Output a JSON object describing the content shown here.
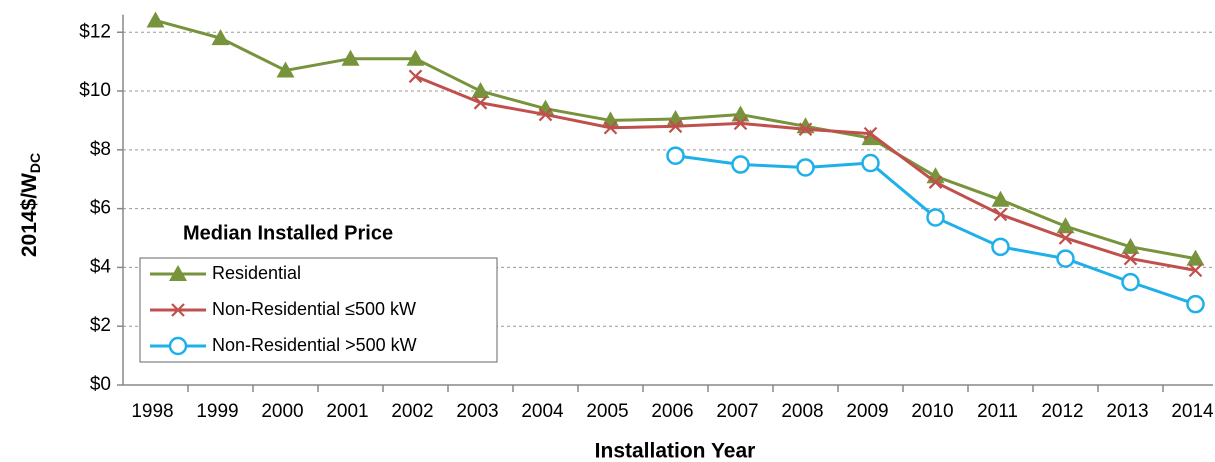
{
  "chart_data": {
    "type": "line",
    "x_label": "Installation Year",
    "y_label": "2014$/W",
    "y_label_sub": "DC",
    "legend_title": "Median Installed Price",
    "legend_position": "lower left",
    "grid": true,
    "categories": [
      "1998",
      "1999",
      "2000",
      "2001",
      "2002",
      "2003",
      "2004",
      "2005",
      "2006",
      "2007",
      "2008",
      "2009",
      "2010",
      "2011",
      "2012",
      "2013",
      "2014"
    ],
    "ylim": [
      0,
      12.6
    ],
    "yticks": [
      {
        "value": 0,
        "label": "$0"
      },
      {
        "value": 2,
        "label": "$2"
      },
      {
        "value": 4,
        "label": "$4"
      },
      {
        "value": 6,
        "label": "$6"
      },
      {
        "value": 8,
        "label": "$8"
      },
      {
        "value": 10,
        "label": "$10"
      },
      {
        "value": 12,
        "label": "$12"
      }
    ],
    "series": [
      {
        "name": "Residential",
        "color": "#77933c",
        "marker": "triangle",
        "values": [
          12.4,
          11.8,
          10.7,
          11.1,
          11.1,
          10.0,
          9.4,
          9.0,
          9.05,
          9.2,
          8.8,
          8.4,
          7.1,
          6.3,
          5.4,
          4.7,
          4.3
        ]
      },
      {
        "name": "Non-Residential ≤500 kW",
        "color": "#c0504d",
        "marker": "x",
        "values": [
          null,
          null,
          null,
          null,
          10.5,
          9.6,
          9.2,
          8.75,
          8.8,
          8.9,
          8.7,
          8.55,
          6.9,
          5.8,
          5.0,
          4.3,
          3.9
        ]
      },
      {
        "name": "Non-Residential >500 kW",
        "color": "#1fb0ea",
        "marker": "circle",
        "values": [
          null,
          null,
          null,
          null,
          null,
          null,
          null,
          null,
          7.8,
          7.5,
          7.4,
          7.55,
          5.7,
          4.7,
          4.3,
          3.5,
          2.75
        ]
      }
    ]
  }
}
